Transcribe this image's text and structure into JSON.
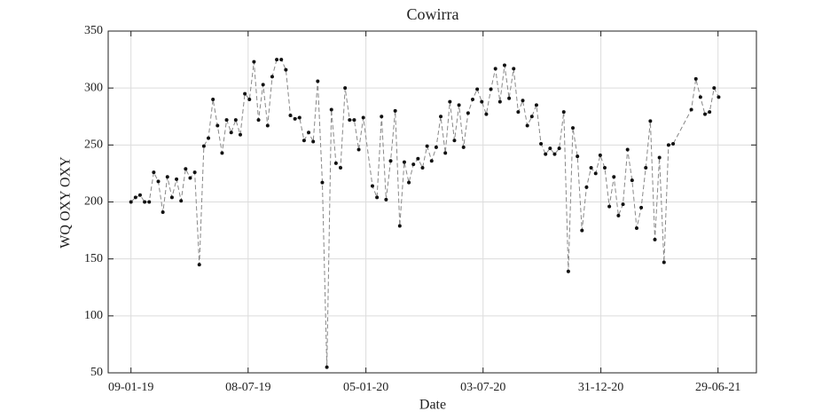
{
  "chart_data": {
    "type": "line",
    "title": "Cowirra",
    "x_label": "Date",
    "y_label": "WQ OXY OXY",
    "x": [
      "09-01-19",
      "16-01-19",
      "23-01-19",
      "30-01-19",
      "06-02-19",
      "13-02-19",
      "20-02-19",
      "27-02-19",
      "06-03-19",
      "13-03-19",
      "20-03-19",
      "27-03-19",
      "03-04-19",
      "10-04-19",
      "17-04-19",
      "24-04-19",
      "01-05-19",
      "08-05-19",
      "15-05-19",
      "22-05-19",
      "29-05-19",
      "05-06-19",
      "12-06-19",
      "19-06-19",
      "26-06-19",
      "03-07-19",
      "10-07-19",
      "17-07-19",
      "24-07-19",
      "31-07-19",
      "07-08-19",
      "14-08-19",
      "21-08-19",
      "28-08-19",
      "04-09-19",
      "11-09-19",
      "18-09-19",
      "25-09-19",
      "02-10-19",
      "09-10-19",
      "16-10-19",
      "23-10-19",
      "30-10-19",
      "06-11-19",
      "13-11-19",
      "20-11-19",
      "27-11-19",
      "04-12-19",
      "11-12-19",
      "18-12-19",
      "25-12-19",
      "01-01-20",
      "15-01-20",
      "22-01-20",
      "29-01-20",
      "05-02-20",
      "12-02-20",
      "19-02-20",
      "26-02-20",
      "04-03-20",
      "11-03-20",
      "18-03-20",
      "25-03-20",
      "01-04-20",
      "08-04-20",
      "15-04-20",
      "22-04-20",
      "29-04-20",
      "06-05-20",
      "13-05-20",
      "20-05-20",
      "27-05-20",
      "03-06-20",
      "10-06-20",
      "17-06-20",
      "24-06-20",
      "01-07-20",
      "08-07-20",
      "15-07-20",
      "22-07-20",
      "29-07-20",
      "05-08-20",
      "12-08-20",
      "19-08-20",
      "26-08-20",
      "02-09-20",
      "09-09-20",
      "16-09-20",
      "23-09-20",
      "30-09-20",
      "07-10-20",
      "14-10-20",
      "21-10-20",
      "28-10-20",
      "04-11-20",
      "11-11-20",
      "18-11-20",
      "25-11-20",
      "02-12-20",
      "09-12-20",
      "16-12-20",
      "23-12-20",
      "30-12-20",
      "06-01-21",
      "13-01-21",
      "20-01-21",
      "27-01-21",
      "03-02-21",
      "10-02-21",
      "17-02-21",
      "24-02-21",
      "03-03-21",
      "10-03-21",
      "17-03-21",
      "24-03-21",
      "31-03-21",
      "07-04-21",
      "14-04-21",
      "21-04-21",
      "19-05-21",
      "26-05-21",
      "02-06-21",
      "09-06-21",
      "16-06-21",
      "23-06-21",
      "30-06-21"
    ],
    "series": [
      {
        "color": "#888888",
        "marker_color": "#111111",
        "values": [
          200,
          204,
          206,
          200,
          200,
          226,
          218,
          191,
          222,
          204,
          220,
          201,
          229,
          221,
          226,
          145,
          249,
          256,
          290,
          267,
          243,
          272,
          261,
          272,
          259,
          295,
          290,
          323,
          272,
          303,
          267,
          310,
          325,
          325,
          316,
          276,
          273,
          274,
          254,
          261,
          253,
          306,
          217,
          55,
          281,
          234,
          230,
          300,
          272,
          272,
          246,
          274,
          214,
          204,
          275,
          202,
          236,
          280,
          179,
          235,
          217,
          233,
          238,
          230,
          249,
          236,
          248,
          275,
          243,
          288,
          254,
          285,
          248,
          278,
          290,
          299,
          288,
          277,
          299,
          317,
          288,
          320,
          291,
          317,
          279,
          289,
          267,
          275,
          285,
          251,
          242,
          247,
          242,
          247,
          279,
          139,
          265,
          240,
          175,
          213,
          230,
          225,
          241,
          230,
          196,
          222,
          188,
          198,
          246,
          219,
          177,
          195,
          230,
          271,
          167,
          239,
          147,
          250,
          251,
          281,
          308,
          292,
          277,
          279,
          300,
          292
        ]
      }
    ],
    "xlim": [
      "05-12-18",
      "27-08-21"
    ],
    "xticks": [
      "09-01-19",
      "08-07-19",
      "05-01-20",
      "03-07-20",
      "31-12-20",
      "29-06-21"
    ],
    "ylim": [
      50,
      350
    ],
    "yticks": [
      50,
      100,
      150,
      200,
      250,
      300,
      350
    ],
    "grid": true
  }
}
